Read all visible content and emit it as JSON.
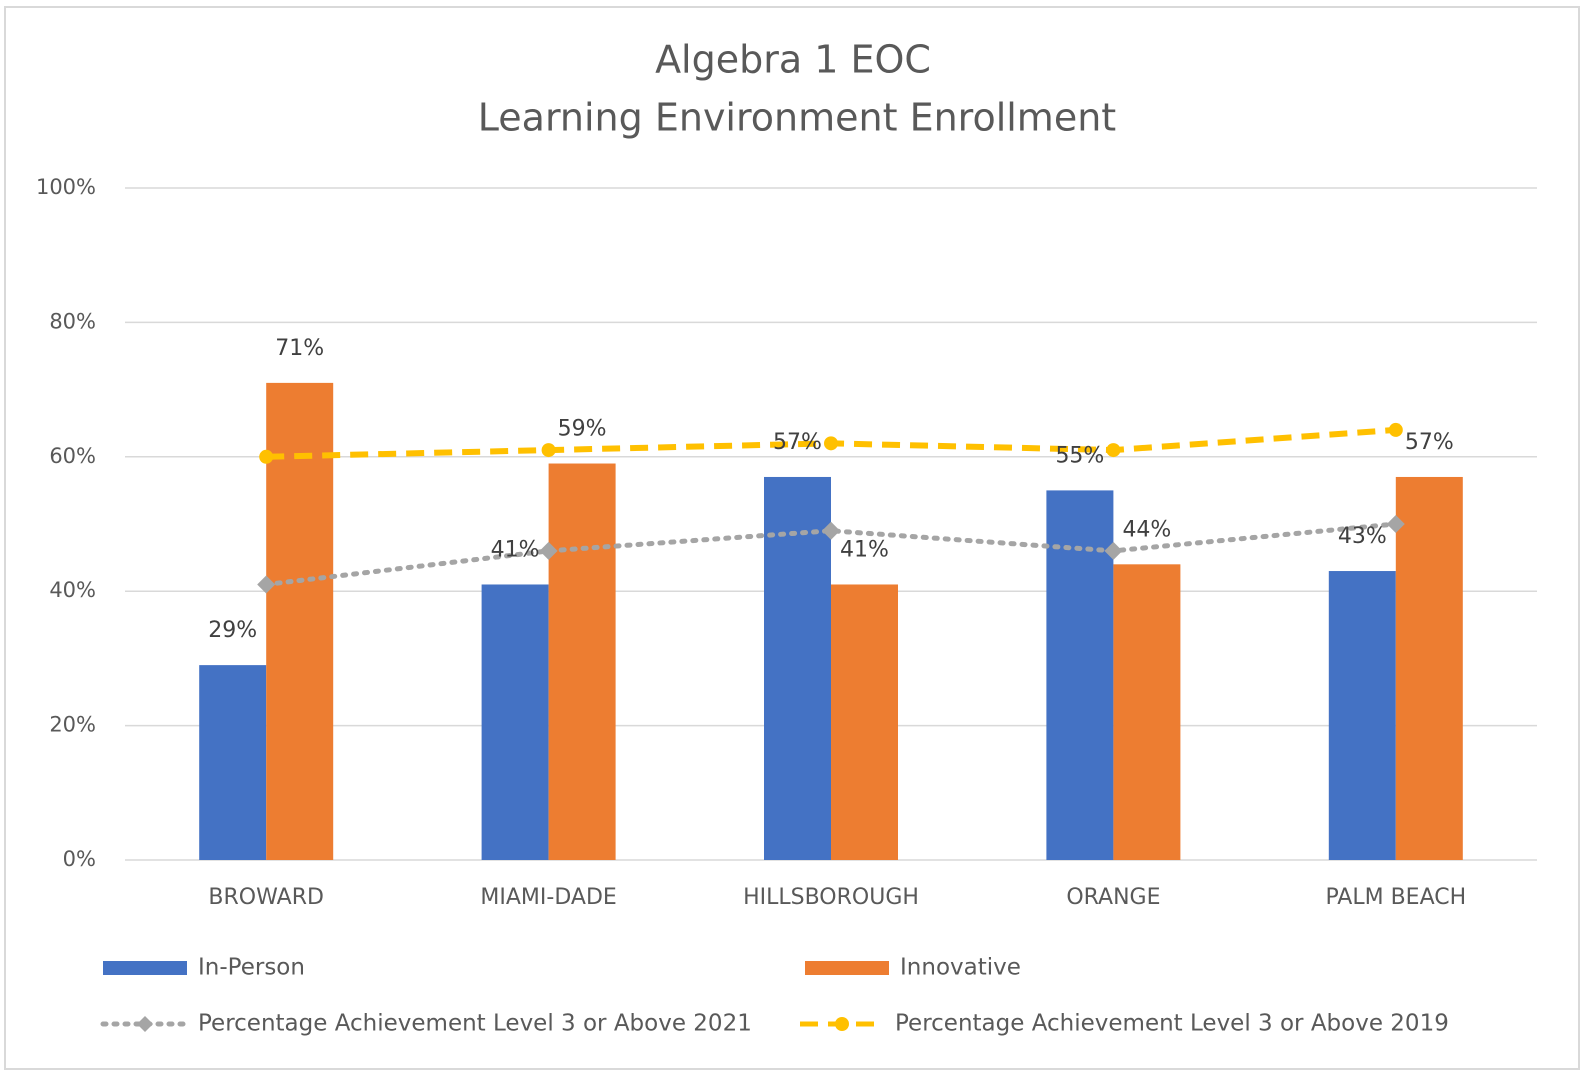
{
  "chart_data": {
    "type": "bar",
    "title": "Algebra 1 EOC",
    "subtitle": "Learning Environment Enrollment",
    "categories": [
      "BROWARD",
      "MIAMI-DADE",
      "HILLSBOROUGH",
      "ORANGE",
      "PALM BEACH"
    ],
    "series": [
      {
        "name": "In-Person",
        "type": "bar",
        "color": "#4472c4",
        "values": [
          29,
          41,
          57,
          55,
          43
        ],
        "value_labels": [
          "29%",
          "41%",
          "57%",
          "55%",
          "43%"
        ]
      },
      {
        "name": "Innovative",
        "type": "bar",
        "color": "#ed7d31",
        "values": [
          71,
          59,
          41,
          44,
          57
        ],
        "value_labels": [
          "71%",
          "59%",
          "41%",
          "44%",
          "57%"
        ]
      },
      {
        "name": "Percentage Achievement Level 3 or Above 2021",
        "type": "line",
        "style": "dotted",
        "marker": "diamond",
        "color": "#a5a5a5",
        "values": [
          41,
          46,
          49,
          46,
          50
        ]
      },
      {
        "name": "Percentage Achievement Level 3 or Above 2019",
        "type": "line",
        "style": "dashed",
        "marker": "circle",
        "color": "#ffc000",
        "values": [
          60,
          61,
          62,
          61,
          64
        ]
      }
    ],
    "ylim": [
      0,
      100
    ],
    "yticks": [
      {
        "value": 0,
        "label": "0%"
      },
      {
        "value": 20,
        "label": "20%"
      },
      {
        "value": 40,
        "label": "40%"
      },
      {
        "value": 60,
        "label": "60%"
      },
      {
        "value": 80,
        "label": "80%"
      },
      {
        "value": 100,
        "label": "100%"
      }
    ],
    "grid": true
  }
}
